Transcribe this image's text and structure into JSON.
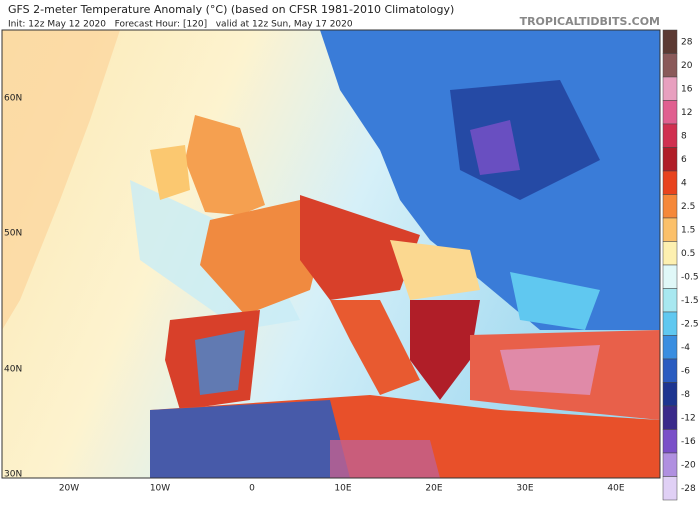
{
  "header": {
    "title": "GFS 2-meter Temperature Anomaly (°C) (based on CFSR 1981-2010 Climatology)",
    "run_info": "Init: 12z May 12 2020   Forecast Hour: [120]   valid at 12z Sun, May 17 2020",
    "source": "TROPICALTIDBITS.COM"
  },
  "map": {
    "lat_labels": [
      "60N",
      "50N",
      "40N",
      "30N"
    ],
    "lon_labels": [
      "20W",
      "10W",
      "0",
      "10E",
      "20E",
      "30E",
      "40E"
    ]
  },
  "colorbar": {
    "labels": [
      28,
      20,
      16,
      12,
      8,
      6,
      4,
      2.5,
      1.5,
      0.5,
      -0.5,
      -1.5,
      -2.5,
      -4,
      -6,
      -8,
      -12,
      -16,
      -20,
      -28
    ],
    "colors": [
      "#5c3a33",
      "#8a5a5a",
      "#e8a0bf",
      "#e06090",
      "#d03050",
      "#b01e28",
      "#e8431e",
      "#f5883a",
      "#fbc06a",
      "#fdf0b0",
      "#e0f8f8",
      "#a8e8f0",
      "#60c8f0",
      "#3a8ee0",
      "#2a5cc0",
      "#1d3590",
      "#3a2a8a",
      "#7a50c8",
      "#b090e0",
      "#e0d0f5"
    ]
  }
}
